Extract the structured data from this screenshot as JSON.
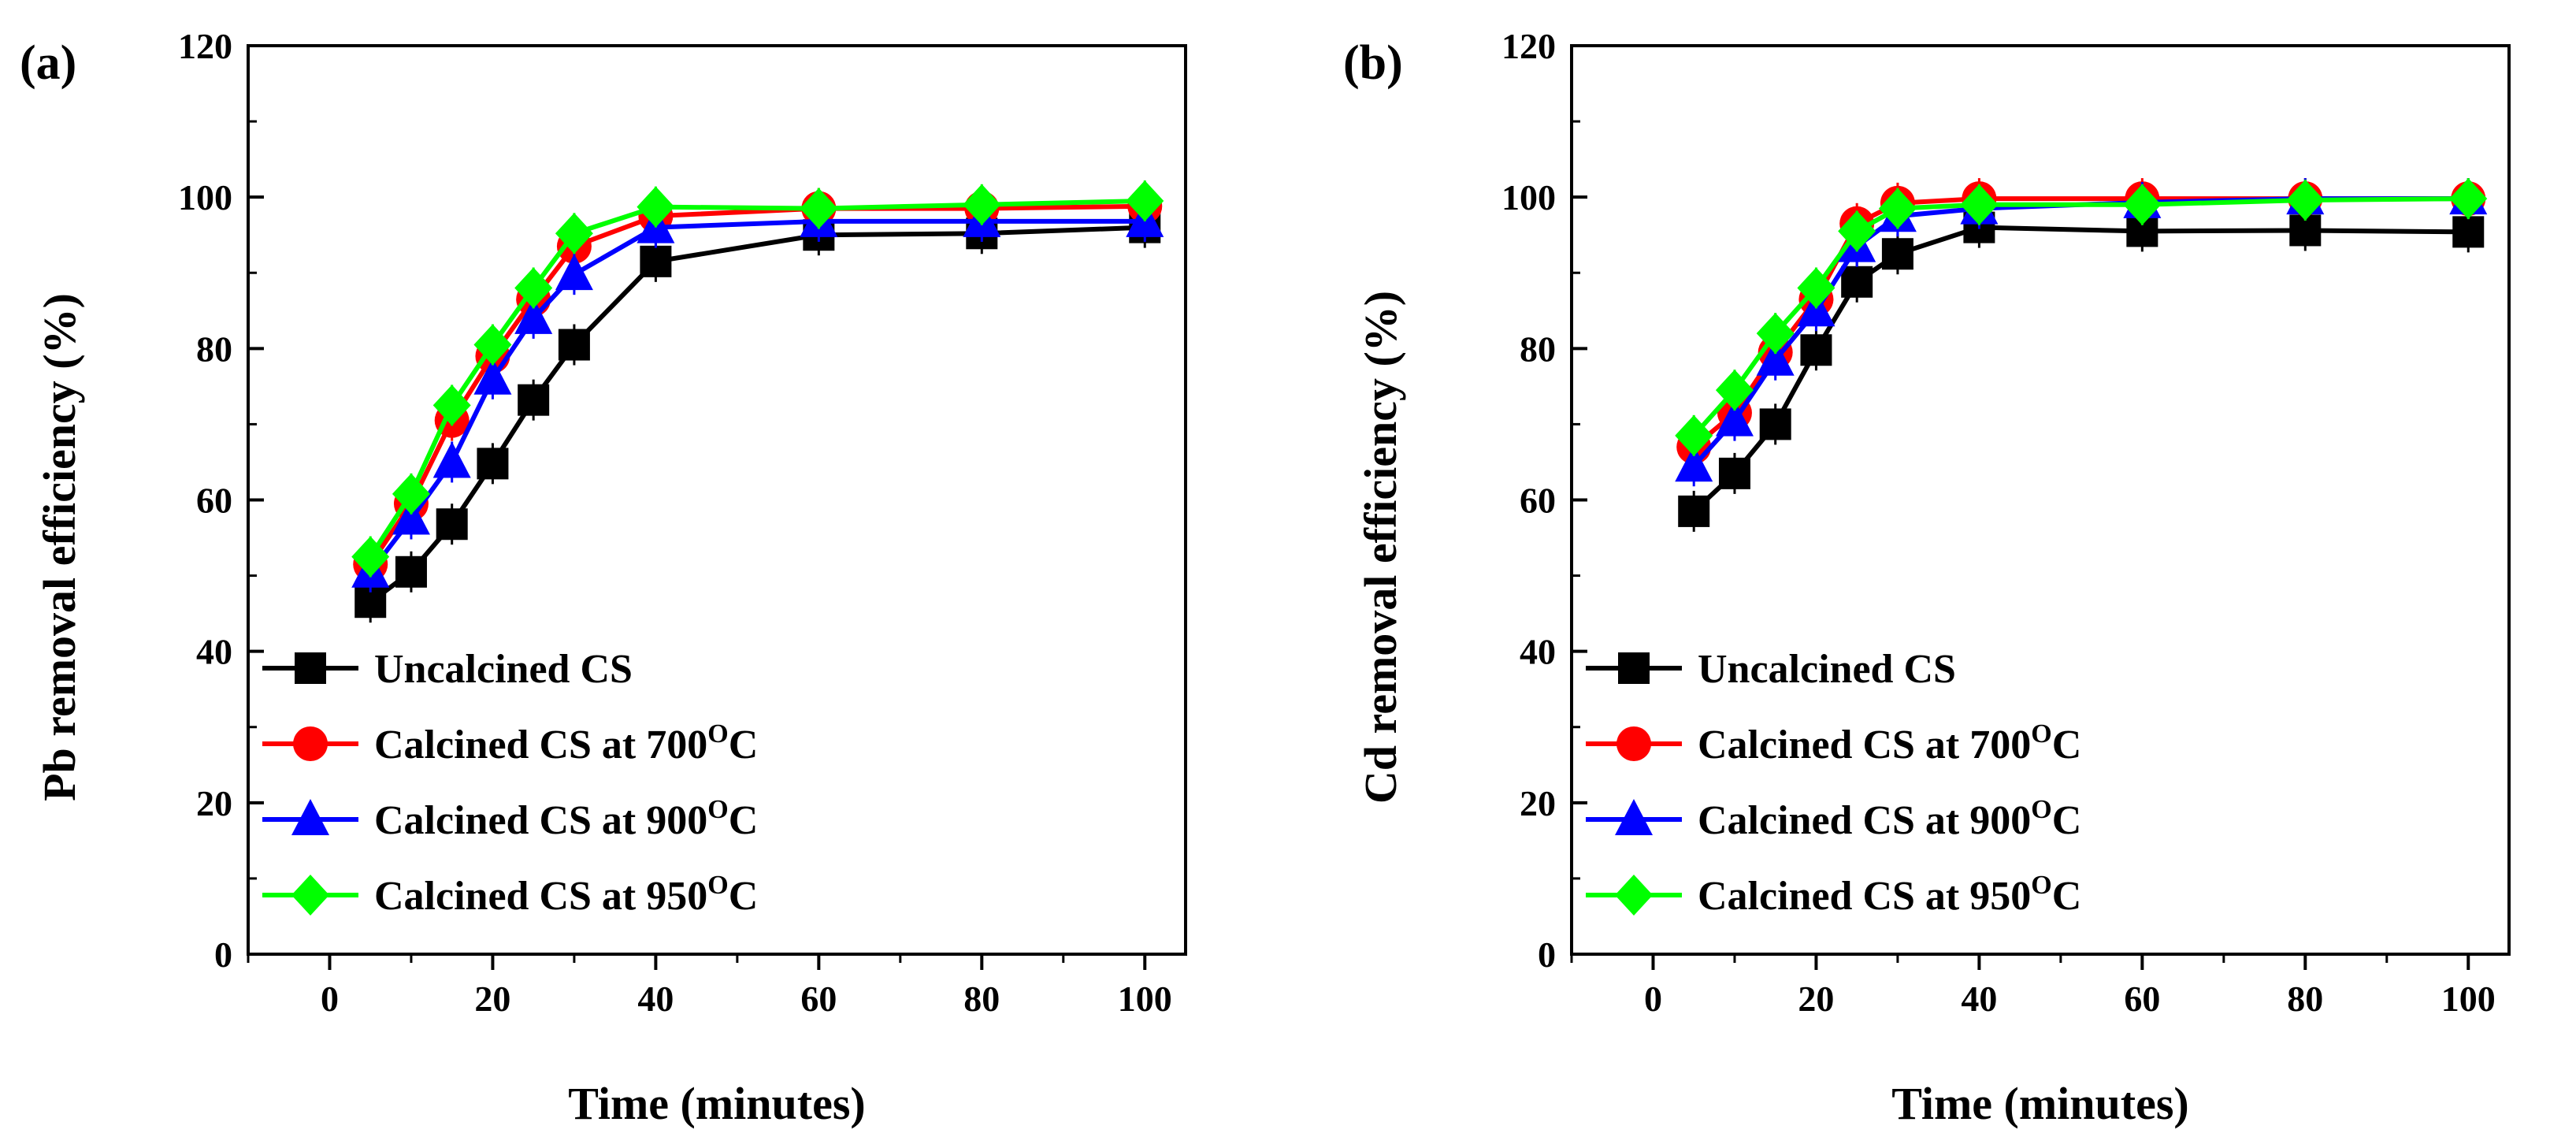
{
  "chart_data": [
    {
      "type": "line",
      "panel_label": "(a)",
      "xlabel": "Time (minutes)",
      "ylabel": "Pb removal efficiency (%)",
      "xlim": [
        -10,
        105
      ],
      "ylim": [
        0,
        120
      ],
      "x_ticks": [
        "0",
        "20",
        "40",
        "60",
        "80",
        "100"
      ],
      "y_ticks": [
        "0",
        "20",
        "40",
        "60",
        "80",
        "100",
        "120"
      ],
      "x_tick_values": [
        0,
        20,
        40,
        60,
        80,
        100
      ],
      "y_tick_values": [
        0,
        20,
        40,
        60,
        80,
        100,
        120
      ],
      "grid": false,
      "legend_position": "bottom-left",
      "x": [
        5,
        10,
        15,
        20,
        25,
        30,
        40,
        60,
        80,
        100
      ],
      "series": [
        {
          "name": "Uncalcined CS",
          "marker": "square",
          "color": "#000000",
          "values": [
            46.5,
            50.5,
            56.8,
            64.8,
            73.2,
            80.5,
            91.5,
            95.0,
            95.2,
            96.0
          ]
        },
        {
          "name": "Calcined CS at 700",
          "sup": "O",
          "suffix": "C",
          "marker": "circle",
          "color": "#ff0000",
          "values": [
            51.5,
            59.5,
            70.5,
            79.0,
            86.5,
            93.5,
            97.5,
            98.5,
            98.5,
            98.8
          ]
        },
        {
          "name": "Calcined CS at 900",
          "sup": "O",
          "suffix": "C",
          "marker": "triangle",
          "color": "#0000ff",
          "values": [
            50.5,
            57.5,
            65.0,
            76.0,
            84.0,
            89.8,
            96.0,
            96.8,
            96.8,
            96.8
          ]
        },
        {
          "name": "Calcined CS at 950",
          "sup": "O",
          "suffix": "C",
          "marker": "diamond",
          "color": "#00ff00",
          "values": [
            52.5,
            60.8,
            72.5,
            80.5,
            88.0,
            95.2,
            98.7,
            98.5,
            99.0,
            99.5
          ]
        }
      ]
    },
    {
      "type": "line",
      "panel_label": "(b)",
      "xlabel": "Time (minutes)",
      "ylabel": "Cd removal efficiency (%)",
      "xlim": [
        -10,
        105
      ],
      "ylim": [
        0,
        120
      ],
      "x_ticks": [
        "0",
        "20",
        "40",
        "60",
        "80",
        "100"
      ],
      "y_ticks": [
        "0",
        "20",
        "40",
        "60",
        "80",
        "100",
        "120"
      ],
      "x_tick_values": [
        0,
        20,
        40,
        60,
        80,
        100
      ],
      "y_tick_values": [
        0,
        20,
        40,
        60,
        80,
        100,
        120
      ],
      "grid": false,
      "legend_position": "bottom-left",
      "x": [
        5,
        10,
        15,
        20,
        25,
        30,
        40,
        60,
        80,
        100
      ],
      "series": [
        {
          "name": "Uncalcined CS",
          "marker": "square",
          "color": "#000000",
          "values": [
            58.5,
            63.5,
            70.0,
            79.8,
            88.8,
            92.5,
            96.0,
            95.5,
            95.6,
            95.4
          ]
        },
        {
          "name": "Calcined CS at 700",
          "sup": "O",
          "suffix": "C",
          "marker": "circle",
          "color": "#ff0000",
          "values": [
            67.0,
            71.5,
            79.5,
            86.5,
            96.5,
            99.2,
            99.8,
            99.8,
            99.8,
            99.8
          ]
        },
        {
          "name": "Calcined CS at 900",
          "sup": "O",
          "suffix": "C",
          "marker": "triangle",
          "color": "#0000ff",
          "values": [
            64.5,
            70.5,
            78.5,
            85.0,
            93.5,
            97.5,
            98.5,
            99.3,
            99.8,
            99.8
          ]
        },
        {
          "name": "Calcined CS at 950",
          "sup": "O",
          "suffix": "C",
          "marker": "diamond",
          "color": "#00ff00",
          "values": [
            68.5,
            74.5,
            82.0,
            88.0,
            95.5,
            98.5,
            99.0,
            99.0,
            99.6,
            99.8
          ]
        }
      ]
    }
  ]
}
